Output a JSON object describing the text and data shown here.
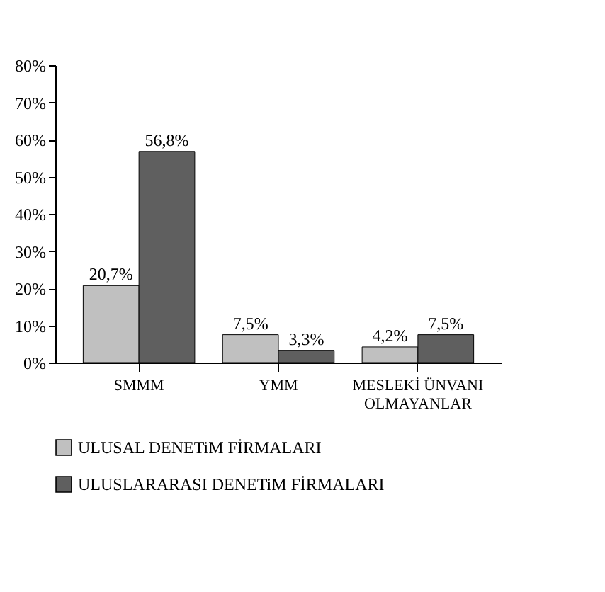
{
  "chart_data": {
    "type": "bar",
    "categories": [
      "SMMM",
      "YMM",
      "MESLEKİ ÜNVANI\nOLMAYANLAR"
    ],
    "series": [
      {
        "name": "ULUSAL DENETiM FİRMALARI",
        "color": "#c0c0c0",
        "values": [
          20.7,
          7.5,
          4.2
        ],
        "value_labels": [
          "20,7%",
          "7,5%",
          "4,2%"
        ]
      },
      {
        "name": "ULUSLARARASI DENETiM FİRMALARI",
        "color": "#5f5f5f",
        "values": [
          56.8,
          3.3,
          7.5
        ],
        "value_labels": [
          "56,8%",
          "3,3%",
          "7,5%"
        ]
      }
    ],
    "ylim": [
      0,
      80
    ],
    "yticks": [
      {
        "value": 0,
        "label": "0%"
      },
      {
        "value": 10,
        "label": "10%"
      },
      {
        "value": 20,
        "label": "20%"
      },
      {
        "value": 30,
        "label": "30%"
      },
      {
        "value": 40,
        "label": "40%"
      },
      {
        "value": 50,
        "label": "50%"
      },
      {
        "value": 60,
        "label": "60%"
      },
      {
        "value": 70,
        "label": "70%"
      },
      {
        "value": 80,
        "label": "80%"
      }
    ],
    "grid": false,
    "legend": "bottom"
  }
}
